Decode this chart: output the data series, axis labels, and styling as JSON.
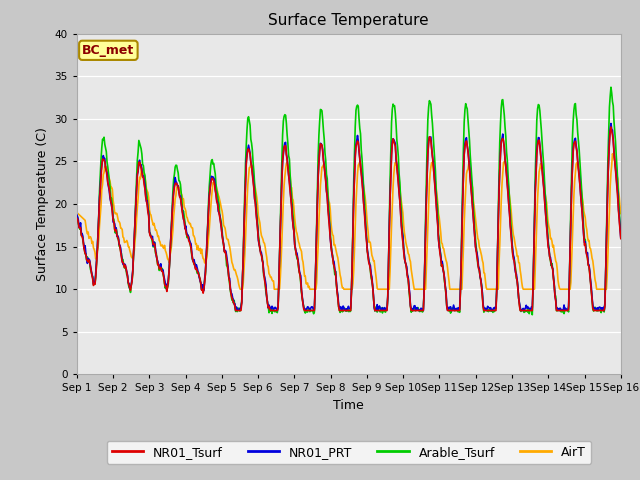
{
  "title": "Surface Temperature",
  "xlabel": "Time",
  "ylabel": "Surface Temperature (C)",
  "ylim": [
    0,
    40
  ],
  "yticks": [
    0,
    5,
    10,
    15,
    20,
    25,
    30,
    35,
    40
  ],
  "plot_bg_color": "#e8e8e8",
  "fig_bg_color": "#c8c8c8",
  "colors": {
    "NR01_Tsurf": "#dd0000",
    "NR01_PRT": "#0000dd",
    "Arable_Tsurf": "#00cc00",
    "AirT": "#ffaa00"
  },
  "annotation": "BC_met",
  "annotation_color": "#8b0000",
  "annotation_bg": "#ffff99",
  "linewidth": 1.2,
  "n_days": 15
}
